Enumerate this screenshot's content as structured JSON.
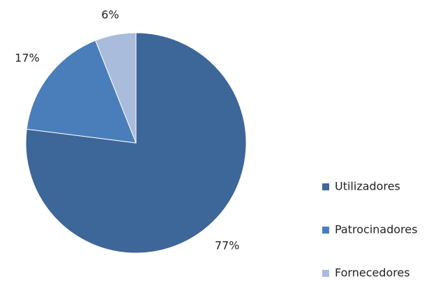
{
  "chart_data": {
    "type": "pie",
    "categories": [
      "Utilizadores",
      "Patrocinadores",
      "Fornecedores"
    ],
    "values": [
      77,
      17,
      6
    ],
    "value_labels": [
      "77%",
      "17%",
      "6%"
    ],
    "colors": [
      "#3d6699",
      "#4a7ebb",
      "#a9bcdb"
    ],
    "legend": "right"
  }
}
